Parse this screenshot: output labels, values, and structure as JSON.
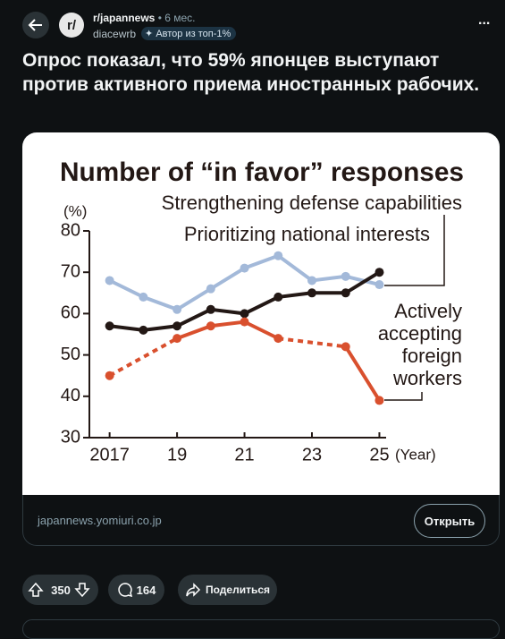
{
  "header": {
    "avatar_text": "r/",
    "subreddit": "r/japannews",
    "separator": "•",
    "time": "6 мес.",
    "author": "diacewrb",
    "badge": "Автор из топ-1%",
    "menu": "..."
  },
  "post": {
    "title": "Опрос показал, что 59% японцев выступают против активного приема иностранных рабочих.",
    "link_domain": "japannews.yomiuri.co.jp",
    "open_button": "Открыть"
  },
  "actions": {
    "votes": 350,
    "comments": 164,
    "share": "Поделиться"
  },
  "chart_data": {
    "type": "line",
    "title": "Number of “in favor” responses",
    "y_label": "(%)",
    "x_label": "(Year)",
    "x": [
      2017,
      2018,
      2019,
      2020,
      2021,
      2022,
      2023,
      2024,
      2025
    ],
    "xlim": [
      2016.4,
      2025.2
    ],
    "xticks": [
      2017,
      {
        "value": 2019,
        "label": "19"
      },
      {
        "value": 2021,
        "label": "21"
      },
      {
        "value": 2023,
        "label": "23"
      },
      {
        "value": 2025,
        "label": "25"
      }
    ],
    "ylim": [
      30,
      80
    ],
    "yticks": [
      30,
      40,
      50,
      60,
      70,
      80
    ],
    "series": [
      {
        "name": "Strengthening defense capabilities",
        "color": "#a3b9d9",
        "values": [
          68,
          64,
          61,
          66,
          71,
          74,
          68,
          69,
          67
        ]
      },
      {
        "name": "Prioritizing national interests",
        "color": "#231815",
        "values": [
          57,
          56,
          57,
          61,
          60,
          64,
          65,
          65,
          70
        ]
      },
      {
        "name": "Actively accepting foreign workers",
        "color": "#d9502e",
        "values": [
          45,
          null,
          54,
          57,
          58,
          54,
          null,
          52,
          39
        ]
      }
    ]
  }
}
